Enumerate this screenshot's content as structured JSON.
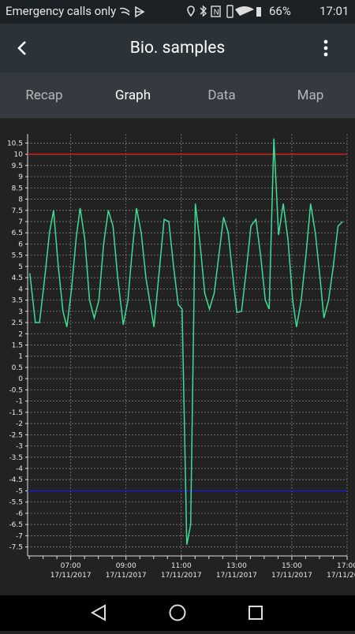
{
  "status_bar": {
    "carrier": "Emergency calls only",
    "battery": "66%",
    "time": "17:01"
  },
  "app_bar": {
    "title": "Bio. samples"
  },
  "tabs": [
    "Recap",
    "Graph",
    "Data",
    "Map"
  ],
  "chart_data": {
    "type": "line",
    "x": [
      5.52,
      5.72,
      5.87,
      6.06,
      6.23,
      6.38,
      6.55,
      6.72,
      6.86,
      7.03,
      7.2,
      7.34,
      7.51,
      7.68,
      7.85,
      8.02,
      8.19,
      8.36,
      8.53,
      8.7,
      8.9,
      9.07,
      9.21,
      9.38,
      9.55,
      9.72,
      10.01,
      10.18,
      10.38,
      10.55,
      10.72,
      10.89,
      11.03,
      11.2,
      11.34,
      11.51,
      11.68,
      11.85,
      12.02,
      12.19,
      12.36,
      12.53,
      12.7,
      12.87,
      13.01,
      13.18,
      13.35,
      13.52,
      13.7,
      13.87,
      14.04,
      14.18,
      14.35,
      14.52,
      14.69,
      14.86,
      15.03,
      15.17,
      15.34,
      15.51,
      15.68,
      15.85,
      16.02,
      16.16,
      16.33,
      16.5,
      16.67,
      16.84
    ],
    "values": [
      4.7,
      2.5,
      2.5,
      4.5,
      6.5,
      7.5,
      5,
      3,
      2.3,
      4,
      6.3,
      7.6,
      6.2,
      3.5,
      2.7,
      3.5,
      6,
      7.5,
      6.8,
      4.5,
      2.4,
      3.5,
      5.5,
      7.6,
      6.5,
      4.5,
      2.3,
      4.5,
      7.1,
      7,
      5,
      3.3,
      3.1,
      -7.4,
      -6.5,
      7.8,
      6,
      3.8,
      3.1,
      3.8,
      5.5,
      7.2,
      6.5,
      4.5,
      2.95,
      3,
      4.8,
      6.8,
      7.1,
      5.5,
      3.5,
      3.1,
      10.7,
      6.4,
      7.8,
      6.2,
      3.5,
      2.3,
      3.5,
      5.5,
      7.8,
      6.5,
      4.5,
      2.7,
      3.5,
      5,
      6.8,
      7
    ],
    "color": "#3ddc97",
    "xlim": [
      5.44,
      17
    ],
    "xticks": [
      {
        "value": 7,
        "label": "07:00"
      },
      {
        "value": 9,
        "label": "09:00"
      },
      {
        "value": 11,
        "label": "11:00"
      },
      {
        "value": 13,
        "label": "13:00"
      },
      {
        "value": 15,
        "label": "15:00"
      },
      {
        "value": 17,
        "label": "17:00"
      }
    ],
    "xtick_dates": [
      "17/11/2017",
      "17/11/2017",
      "17/11/2017",
      "17/11/2017",
      "17/11/2017",
      "17/11/2017"
    ],
    "xminorticks": [
      5.5,
      6,
      6.5,
      7.5,
      8,
      8.5,
      9.5,
      10,
      10.5,
      11.5,
      12,
      12.5,
      13.5,
      14,
      14.5,
      15.5,
      16,
      16.5
    ],
    "ylim": [
      -7.9,
      10.9
    ],
    "yticks": [
      10.5,
      10,
      9.5,
      9,
      8.5,
      8,
      7.5,
      7,
      6.5,
      6,
      5.5,
      5,
      4.5,
      4,
      3.5,
      3,
      2.5,
      2,
      1.5,
      1,
      0.5,
      0,
      -0.5,
      -1,
      -1.5,
      -2,
      -2.5,
      -3,
      -3.5,
      -4,
      -4.5,
      -5,
      -5.5,
      -6,
      -6.5,
      -7,
      -7.5
    ],
    "grid": true,
    "reference_lines": [
      {
        "value": 10,
        "color": "#e02020"
      },
      {
        "value": -5,
        "color": "#1a1ad0"
      }
    ]
  }
}
